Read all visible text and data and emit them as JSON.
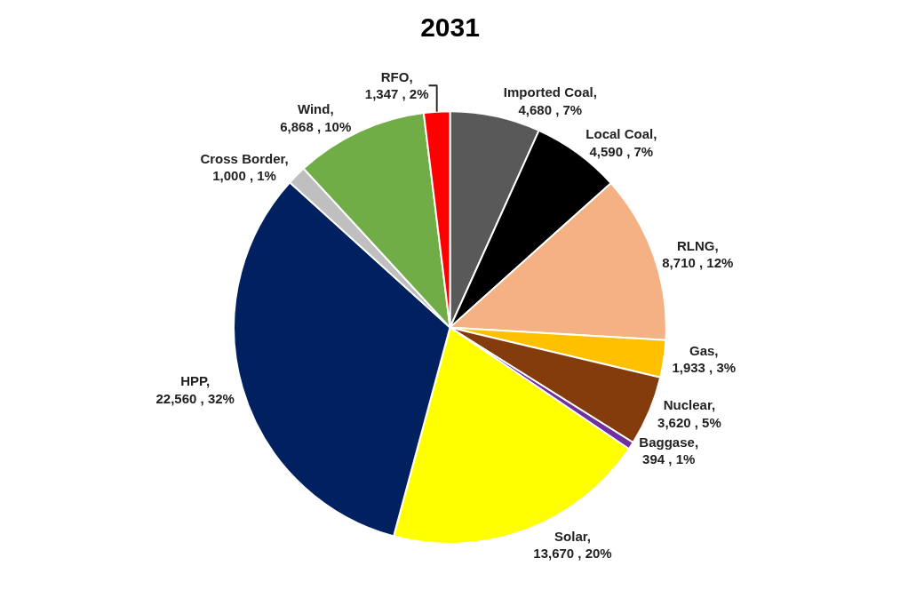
{
  "chart_data": {
    "type": "pie",
    "title": "2031",
    "categories": [
      "Imported Coal",
      "Local Coal",
      "RLNG",
      "Gas",
      "Nuclear",
      "Baggase",
      "Solar",
      "HPP",
      "Cross Border",
      "Wind",
      "RFO"
    ],
    "values": [
      4680,
      4590,
      8710,
      1933,
      3620,
      394,
      13670,
      22560,
      1000,
      6868,
      1347
    ],
    "value_labels": [
      ", 4,680 , 7%",
      ", 4,590 , 7%",
      ", 8,710 , 12%",
      ", 1,933 , 3%",
      ", 3,620 , 5%",
      ", 394 , 1%",
      ", 13,670 , 20%",
      ", 22,560 , 32%",
      ", 1,000 , 1%",
      ", 6,868 , 10%",
      ", 1,347 , 2%"
    ],
    "colors": [
      "#595959",
      "#000000",
      "#f4b183",
      "#ffc000",
      "#843c0c",
      "#7030a0",
      "#ffff00",
      "#002060",
      "#bfbfbf",
      "#70ad47",
      "#ff0000"
    ],
    "legend": false
  }
}
